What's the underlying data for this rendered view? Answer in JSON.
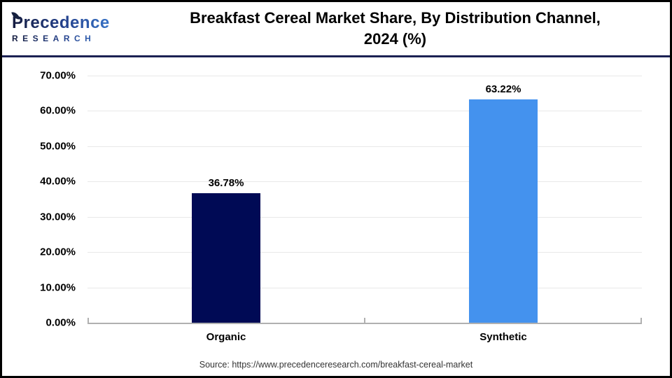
{
  "header": {
    "logo": {
      "brand_p": "P",
      "brand_rest": "recedence",
      "subtitle": "RESEARCH"
    },
    "title_line1": "Breakfast Cereal Market Share, By Distribution Channel,",
    "title_line2": "2024 (%)"
  },
  "chart_data": {
    "type": "bar",
    "title": "Breakfast Cereal Market Share, By Distribution Channel, 2024 (%)",
    "categories": [
      "Organic",
      "Synthetic"
    ],
    "values": [
      36.78,
      63.22
    ],
    "value_labels": [
      "36.78%",
      "63.22%"
    ],
    "bar_colors": [
      "#000a55",
      "#4492ee"
    ],
    "xlabel": "",
    "ylabel": "",
    "ylim": [
      0,
      70
    ],
    "ytick_step": 10,
    "yticks": [
      "70.00%",
      "60.00%",
      "50.00%",
      "40.00%",
      "30.00%",
      "20.00%",
      "10.00%",
      "0.00%"
    ],
    "grid": true,
    "legend": "none",
    "colors": {
      "gridline": "#e8e8e8",
      "axis_line": "#b0b0b0",
      "header_separator": "#1b2153",
      "frame_border": "#000000"
    }
  },
  "footer": {
    "source": "Source: https://www.precedenceresearch.com/breakfast-cereal-market"
  }
}
